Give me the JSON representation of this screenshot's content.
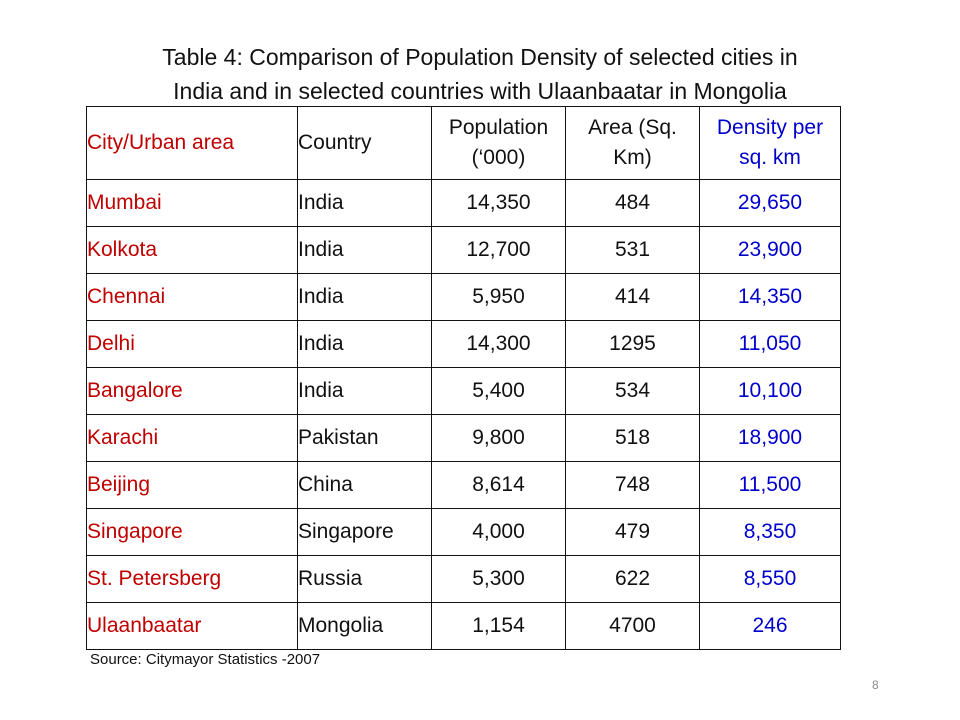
{
  "title": {
    "line1": "Table 4: Comparison of Population Density of selected cities in",
    "line2": "India and in selected countries with Ulaanbaatar in Mongolia"
  },
  "table": {
    "headers": {
      "city": "City/Urban area",
      "country": "Country",
      "population_line1": "Population",
      "population_line2": "(‘000)",
      "area_line1": "Area (Sq.",
      "area_line2": "Km)",
      "density_line1": "Density per",
      "density_line2": "sq. km"
    },
    "rows": [
      {
        "city": "Mumbai",
        "country": "India",
        "population": "14,350",
        "area": "484",
        "density": "29,650"
      },
      {
        "city": "Kolkota",
        "country": "India",
        "population": "12,700",
        "area": "531",
        "density": "23,900"
      },
      {
        "city": "Chennai",
        "country": "India",
        "population": "5,950",
        "area": "414",
        "density": "14,350"
      },
      {
        "city": "Delhi",
        "country": "India",
        "population": "14,300",
        "area": "1295",
        "density": "11,050"
      },
      {
        "city": "Bangalore",
        "country": "India",
        "population": "5,400",
        "area": "534",
        "density": "10,100"
      },
      {
        "city": "Karachi",
        "country": "Pakistan",
        "population": "9,800",
        "area": "518",
        "density": "18,900"
      },
      {
        "city": "Beijing",
        "country": "China",
        "population": "8,614",
        "area": "748",
        "density": "11,500"
      },
      {
        "city": "Singapore",
        "country": "Singapore",
        "population": "4,000",
        "area": "479",
        "density": "8,350"
      },
      {
        "city": "St. Petersberg",
        "country": "Russia",
        "population": "5,300",
        "area": "622",
        "density": "8,550"
      },
      {
        "city": "Ulaanbaatar",
        "country": "Mongolia",
        "population": "1,154",
        "area": "4700",
        "density": "246"
      }
    ]
  },
  "source": "Source: Citymayor Statistics -2007",
  "page_number": "8",
  "colors": {
    "city_text": "#c00000",
    "density_text": "#0000cc",
    "body_text": "#111111"
  }
}
